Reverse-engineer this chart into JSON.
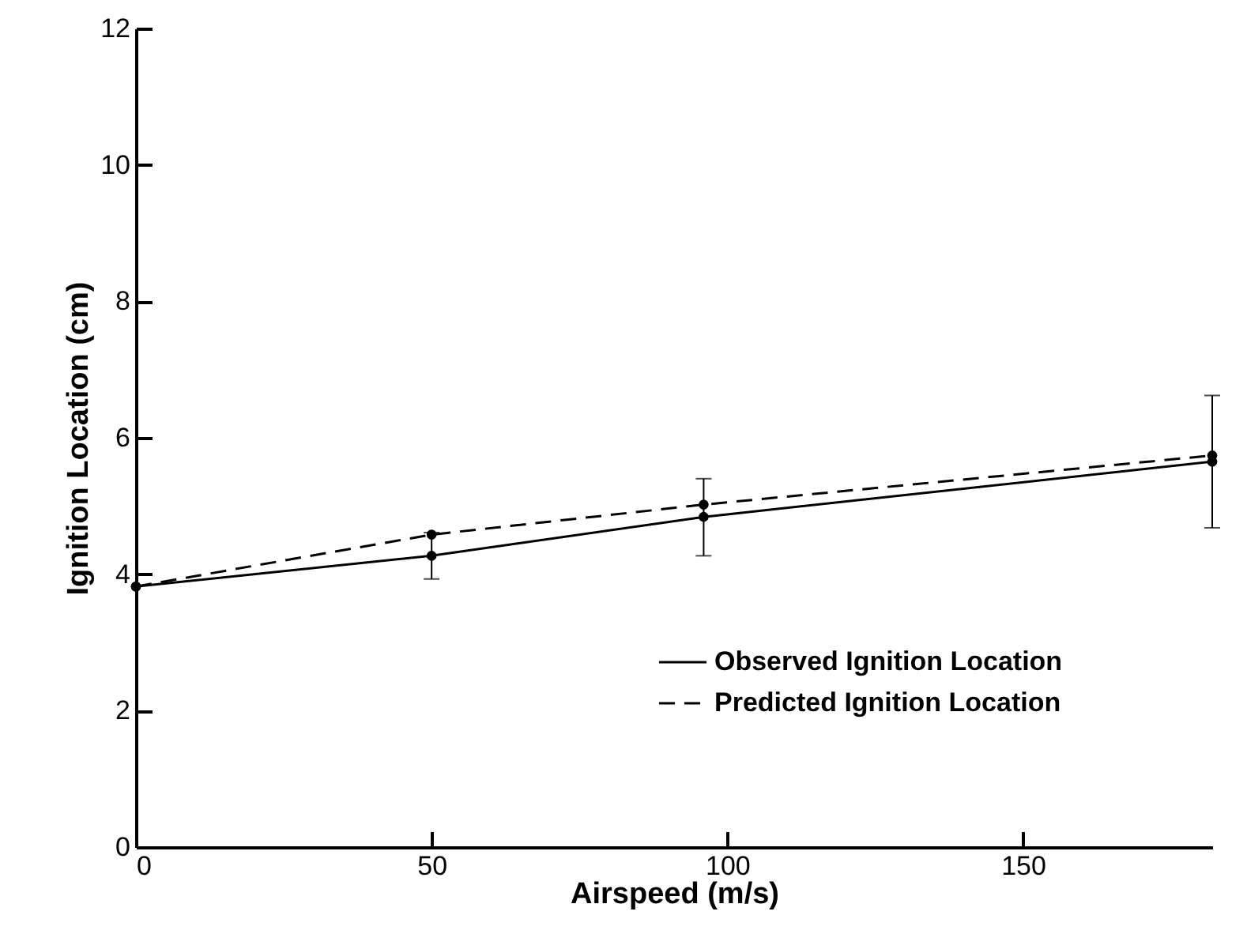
{
  "chart_data": {
    "type": "line",
    "xlabel": "Airspeed (m/s)",
    "ylabel": "Ignition Location (cm)",
    "x": [
      0,
      50,
      96,
      182
    ],
    "series": [
      {
        "name": "Observed Ignition Location",
        "color": "#000000",
        "line_style": "solid",
        "values": [
          3.82,
          4.27,
          4.84,
          5.65
        ],
        "errors": [
          null,
          [
            3.93,
            4.61
          ],
          [
            4.27,
            5.4
          ],
          [
            4.68,
            6.62
          ]
        ]
      },
      {
        "name": "Predicted Ignition Location",
        "color": "#000000",
        "line_style": "dashed",
        "values": [
          3.82,
          4.58,
          5.02,
          5.74
        ]
      }
    ],
    "xlim": [
      0,
      182
    ],
    "xticks": [
      0,
      50,
      100,
      150
    ],
    "ylim": [
      0,
      12
    ],
    "yticks": [
      0,
      2,
      4,
      6,
      8,
      10,
      12
    ],
    "marker": "circle",
    "legend": "bottom right",
    "grid": false
  }
}
